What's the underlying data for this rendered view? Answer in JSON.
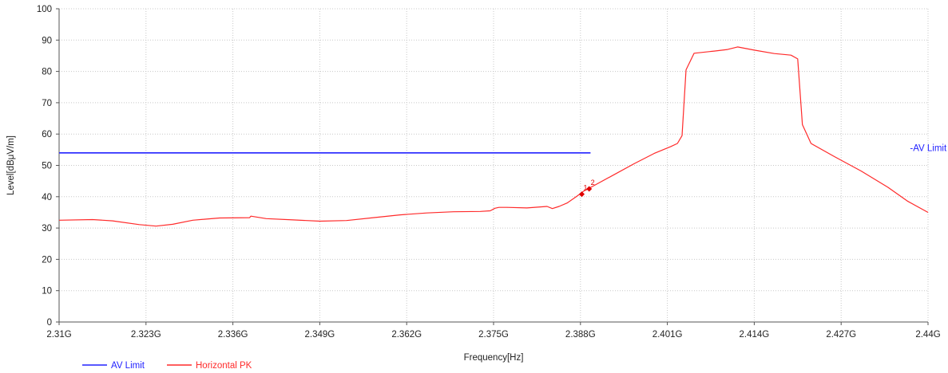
{
  "chart_data": {
    "type": "line",
    "xlabel": "Frequency[Hz]",
    "ylabel": "Level[dBμV/m]",
    "xlim": [
      2.31,
      2.44
    ],
    "ylim": [
      0,
      100
    ],
    "x_ticks": [
      2.31,
      2.323,
      2.336,
      2.349,
      2.362,
      2.375,
      2.388,
      2.401,
      2.414,
      2.427,
      2.44
    ],
    "x_tick_labels": [
      "2.31G",
      "2.323G",
      "2.336G",
      "2.349G",
      "2.362G",
      "2.375G",
      "2.388G",
      "2.401G",
      "2.414G",
      "2.427G",
      "2.44G"
    ],
    "y_ticks": [
      0,
      10,
      20,
      30,
      40,
      50,
      60,
      70,
      80,
      90,
      100
    ],
    "y_tick_labels": [
      "0",
      "10",
      "20",
      "30",
      "40",
      "50",
      "60",
      "70",
      "80",
      "90",
      "100"
    ],
    "grid": true,
    "legend": "bottom-left",
    "series": [
      {
        "name": "AV Limit",
        "color": "#2222ff",
        "x": [
          2.31,
          2.3895
        ],
        "values": [
          54,
          54
        ]
      },
      {
        "name": "Horizontal PK",
        "color": "#ff2a2a",
        "x": [
          2.31,
          2.315,
          2.318,
          2.322,
          2.3245,
          2.327,
          2.33,
          2.334,
          2.3385,
          2.3387,
          2.341,
          2.345,
          2.349,
          2.353,
          2.357,
          2.361,
          2.365,
          2.369,
          2.373,
          2.3745,
          2.3752,
          2.3758,
          2.377,
          2.38,
          2.383,
          2.3838,
          2.3848,
          2.386,
          2.3875,
          2.3885,
          2.39,
          2.393,
          2.396,
          2.399,
          2.4015,
          2.4025,
          2.4032,
          2.4038,
          2.405,
          2.408,
          2.41,
          2.4115,
          2.414,
          2.417,
          2.4195,
          2.4205,
          2.4212,
          2.4225,
          2.426,
          2.43,
          2.434,
          2.437,
          2.44
        ],
        "values": [
          32.5,
          32.7,
          32.3,
          31.1,
          30.6,
          31.2,
          32.5,
          33.2,
          33.3,
          33.8,
          33.0,
          32.6,
          32.2,
          32.4,
          33.3,
          34.2,
          34.8,
          35.2,
          35.3,
          35.5,
          36.3,
          36.6,
          36.6,
          36.4,
          36.9,
          36.2,
          36.9,
          38.0,
          40.2,
          41.8,
          43.5,
          47.0,
          50.5,
          53.8,
          56.0,
          57.0,
          59.5,
          80.5,
          85.8,
          86.5,
          87.0,
          87.8,
          86.8,
          85.7,
          85.2,
          84.0,
          63.0,
          57.0,
          52.8,
          48.2,
          43.0,
          38.5,
          35.0
        ]
      }
    ],
    "markers": [
      {
        "label": "1",
        "x": 2.3882,
        "y": 40.8
      },
      {
        "label": "2",
        "x": 2.3893,
        "y": 42.5
      }
    ],
    "annotations": [
      {
        "text": "-AV Limit",
        "x": 2.4373,
        "y": 55.6
      }
    ]
  }
}
